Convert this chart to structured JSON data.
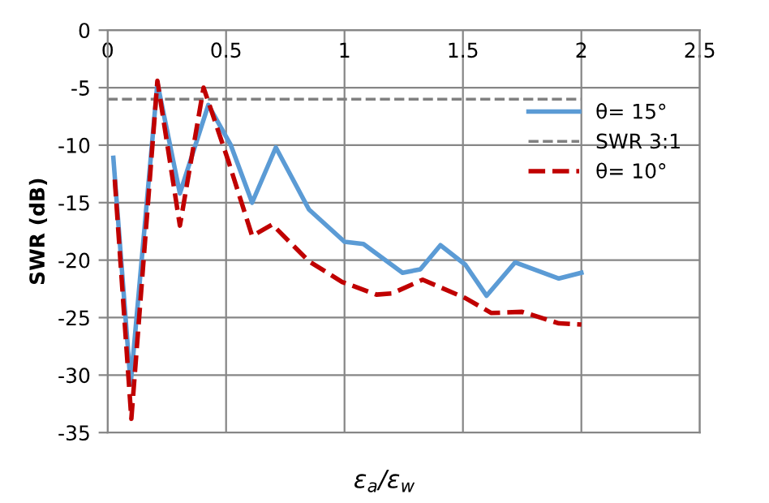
{
  "chart_data": {
    "type": "line",
    "xlabel": "ε$_{a}$/ε$_{w}$",
    "ylabel": "SWR (dB)",
    "xlim": [
      0,
      2.5
    ],
    "xticks": [
      0,
      0.5,
      1,
      1.5,
      2,
      2.5
    ],
    "ylim": [
      -35,
      0
    ],
    "yticks": [
      -35,
      -30,
      -25,
      -20,
      -15,
      -10,
      -5,
      0
    ],
    "grid": true,
    "legend": "right",
    "series": [
      {
        "name": "θ= 15°",
        "color": "#5b9bd5",
        "line_style": "solid",
        "x": [
          0.024,
          0.097,
          0.21,
          0.305,
          0.425,
          0.52,
          0.61,
          0.71,
          0.85,
          1.0,
          1.08,
          1.245,
          1.32,
          1.405,
          1.51,
          1.6,
          1.72,
          1.905,
          2.0
        ],
        "values": [
          -11.1,
          -30.8,
          -4.6,
          -14.2,
          -6.5,
          -10,
          -15,
          -10.2,
          -15.6,
          -18.4,
          -18.6,
          -21.1,
          -20.8,
          -18.7,
          -20.4,
          -23.1,
          -20.2,
          -21.6,
          -21.1
        ]
      },
      {
        "name": "SWR 3:1",
        "color": "#808080",
        "line_style": "dashed",
        "x": [
          0,
          2
        ],
        "values": [
          -6,
          -6
        ]
      },
      {
        "name": "θ= 10°",
        "color": "#c00000",
        "line_style": "dashed",
        "x": [
          0.03,
          0.1,
          0.21,
          0.305,
          0.405,
          0.51,
          0.61,
          0.695,
          0.85,
          0.99,
          1.135,
          1.2,
          1.33,
          1.51,
          1.62,
          1.75,
          1.905,
          2.0
        ],
        "values": [
          -13,
          -33.8,
          -4.4,
          -17,
          -5,
          -11.4,
          -17.9,
          -16.9,
          -20.1,
          -21.9,
          -23,
          -22.9,
          -21.7,
          -23.3,
          -24.6,
          -24.5,
          -25.5,
          -25.6
        ]
      }
    ]
  }
}
